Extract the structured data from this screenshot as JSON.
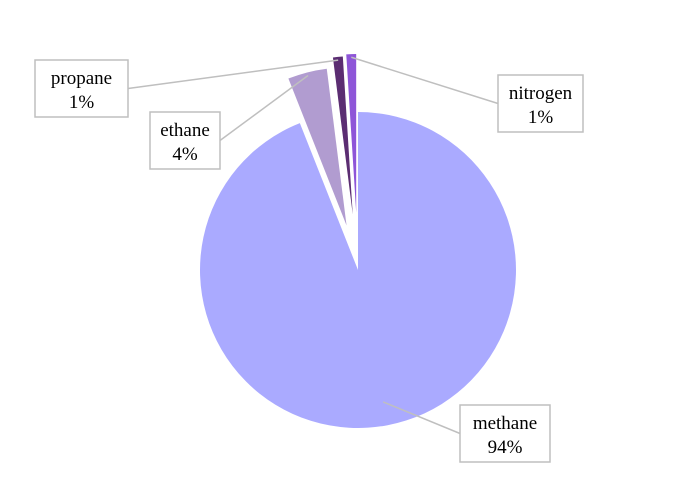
{
  "chart_data": {
    "type": "pie",
    "exploded": true,
    "categories": [
      "methane",
      "ethane",
      "propane",
      "nitrogen"
    ],
    "values": [
      94,
      4,
      1,
      1
    ],
    "value_labels": [
      "94%",
      "4%",
      "1%",
      "1%"
    ],
    "colors": [
      "#aaaaff",
      "#b19cd0",
      "#5b2d72",
      "#8e55d8"
    ],
    "data_labels": "category-and-percent",
    "leader_lines": true,
    "legend": "none"
  }
}
